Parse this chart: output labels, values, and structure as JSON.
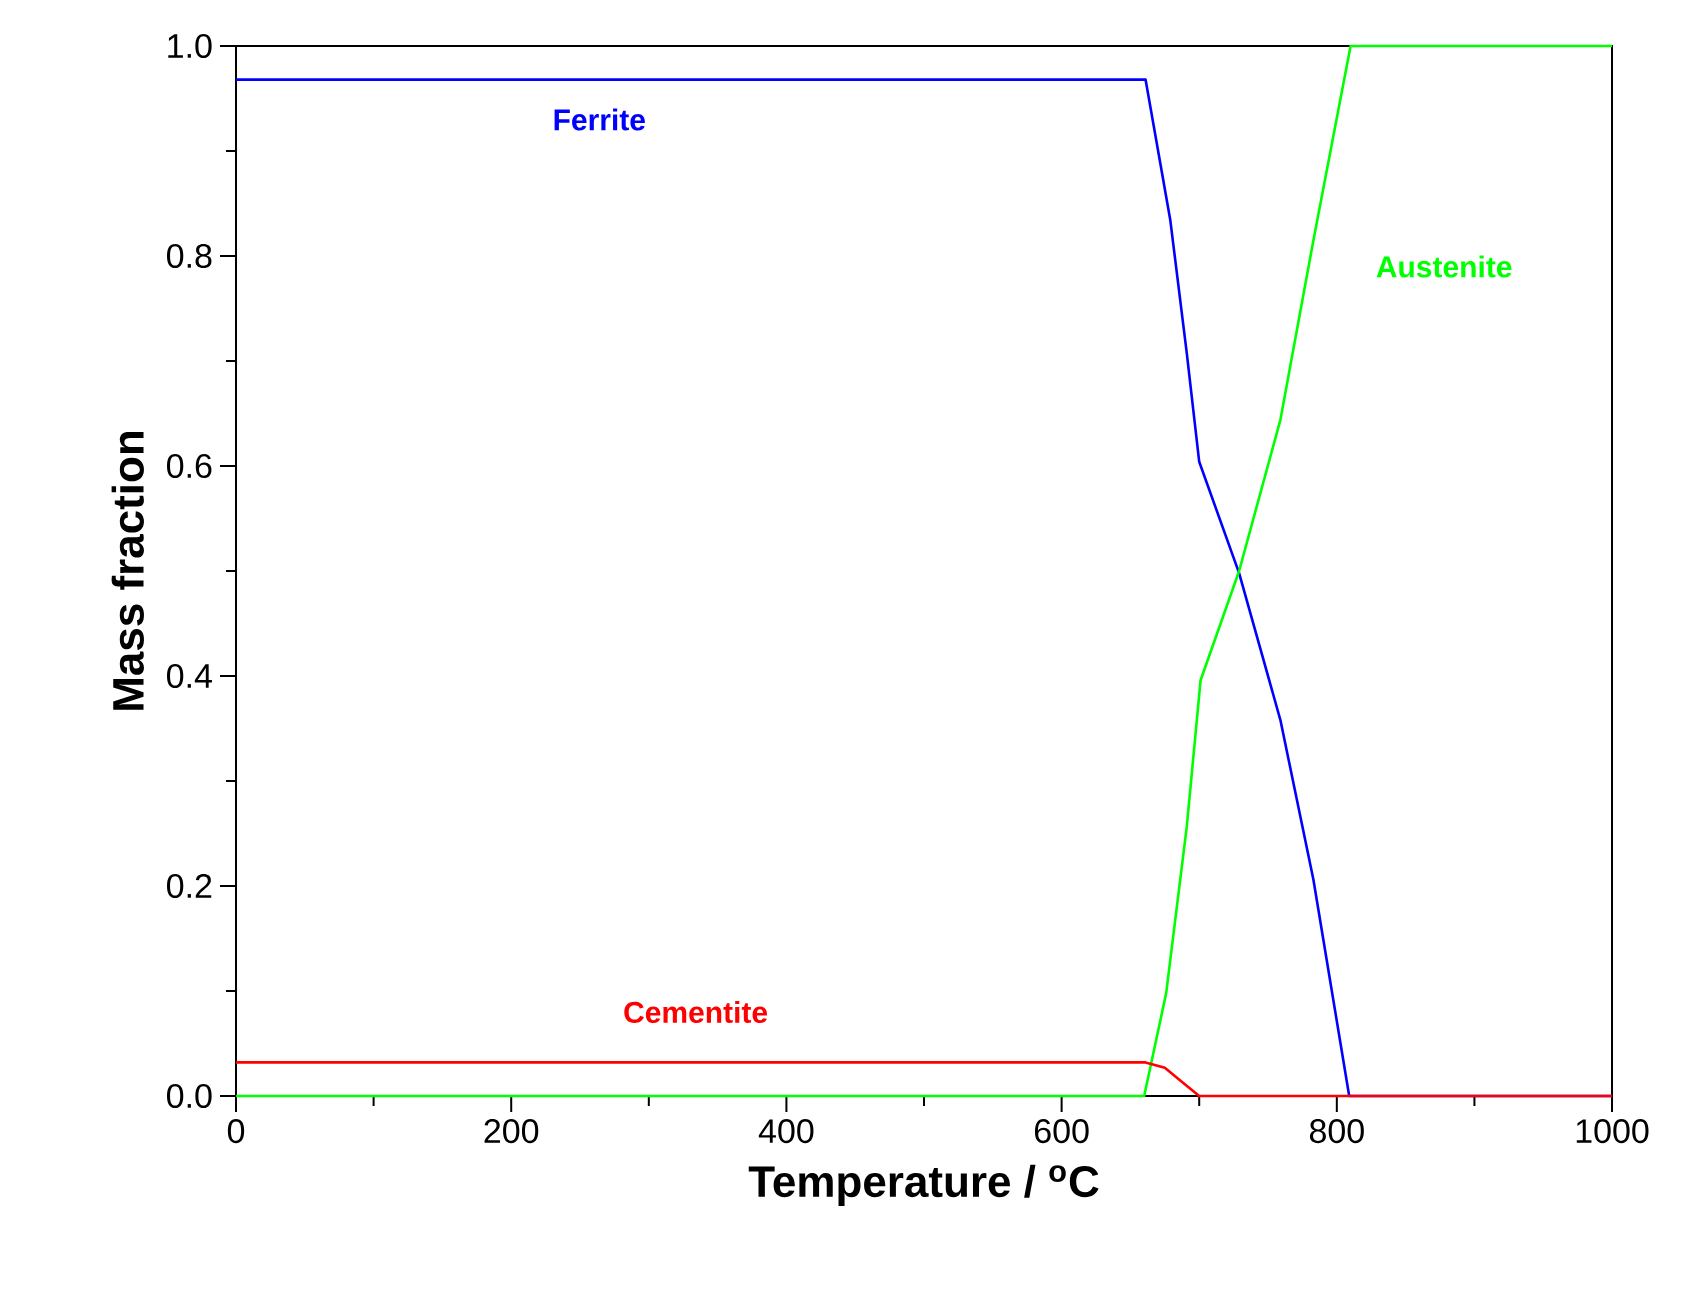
{
  "chart_data": {
    "type": "line",
    "xlabel": "Temperature / $^{o}$C",
    "ylabel": "Mass fraction",
    "xlim": [
      0,
      1000
    ],
    "ylim": [
      0,
      1
    ],
    "xticks": [
      0,
      200,
      400,
      600,
      800,
      1000
    ],
    "yticks": [
      {
        "value": 0,
        "label": "0.0"
      },
      0.2,
      0.4,
      0.6,
      0.8,
      {
        "value": 1,
        "label": "1.0"
      }
    ],
    "marker": "none",
    "line_style": "solid",
    "grid": false,
    "legend": false,
    "series": [
      {
        "name": "Ferrite",
        "color": "#0000ff",
        "x": [
          0,
          300,
          661,
          679,
          691,
          700,
          729,
          759,
          783,
          809,
          1000
        ],
        "values": [
          0.968,
          0.968,
          0.968,
          0.834,
          0.707,
          0.604,
          0.498,
          0.358,
          0.206,
          0.0,
          0.0
        ]
      },
      {
        "name": "Austenite",
        "color": "#00ff00",
        "x": [
          0,
          660,
          676,
          691,
          701,
          729,
          759,
          783,
          810,
          1000
        ],
        "values": [
          0.0,
          0.0,
          0.098,
          0.257,
          0.396,
          0.5,
          0.644,
          0.815,
          1.0,
          1.0
        ]
      },
      {
        "name": "Cementite",
        "color": "#ff0000",
        "x": [
          0,
          661,
          675,
          686,
          700,
          1000
        ],
        "values": [
          0.032,
          0.032,
          0.027,
          0.015,
          0.0,
          0.0
        ]
      }
    ]
  }
}
